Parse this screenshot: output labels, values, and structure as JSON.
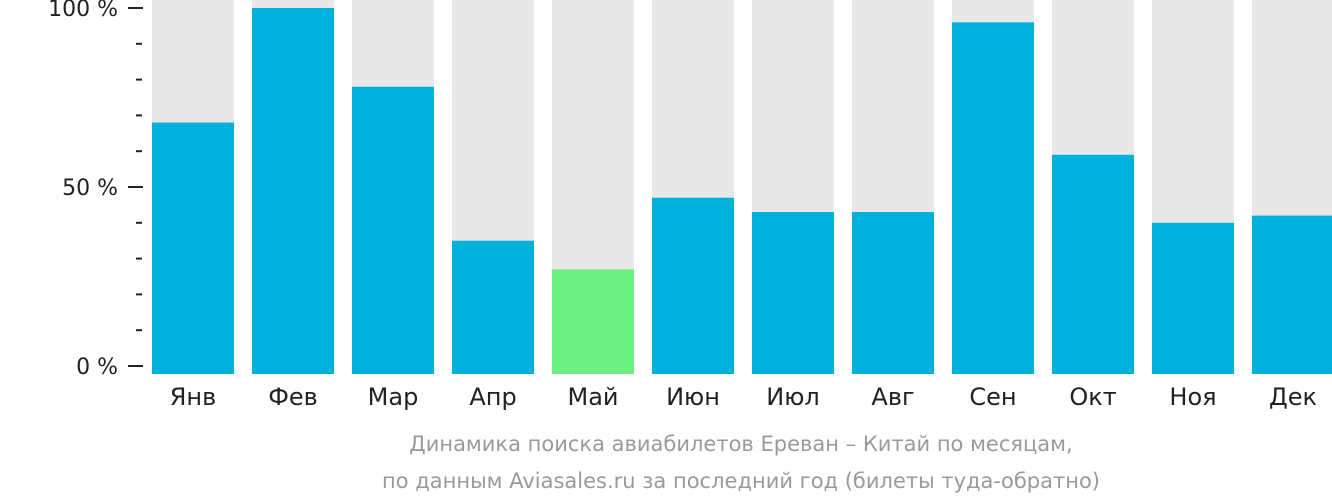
{
  "chart_data": {
    "type": "bar",
    "categories": [
      "Янв",
      "Фев",
      "Мар",
      "Апр",
      "Май",
      "Июн",
      "Июл",
      "Авг",
      "Сен",
      "Окт",
      "Ноя",
      "Дек"
    ],
    "values": [
      68,
      100,
      78,
      35,
      27,
      47,
      43,
      43,
      96,
      59,
      40,
      42
    ],
    "highlight_index": 4,
    "ylim": [
      0,
      100
    ],
    "yticks": [
      {
        "value": 0,
        "label": "0 %"
      },
      {
        "value": 50,
        "label": "50 %"
      },
      {
        "value": 100,
        "label": "100 %"
      }
    ],
    "minor_tick_step": 10,
    "caption_lines": [
      "Динамика поиска авиабилетов Ереван – Китай по месяцам,",
      "по данным Aviasales.ru за последний год (билеты туда-обратно)"
    ],
    "colors": {
      "bar": "#02b0dc",
      "highlight": "#6cf080",
      "track": "#e8e8e8",
      "axis": "#222222",
      "caption": "#9a9a9a"
    }
  }
}
